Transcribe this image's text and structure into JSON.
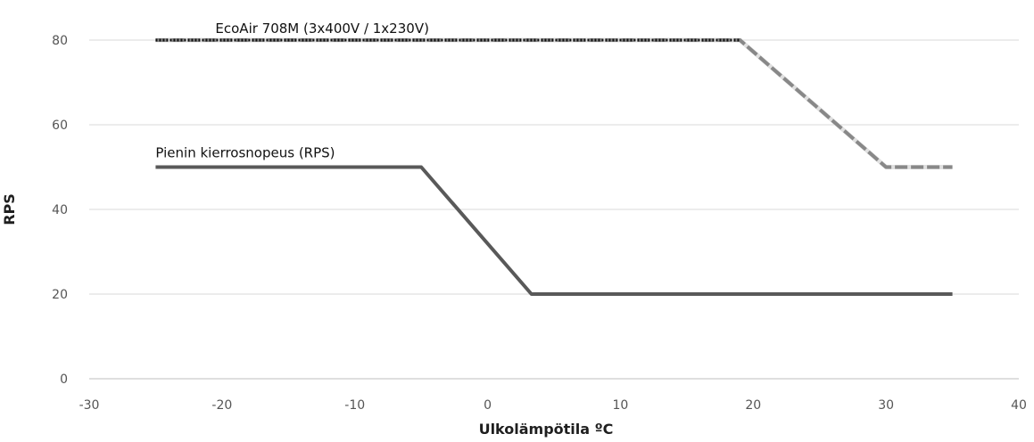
{
  "chart_data": {
    "type": "line",
    "xlabel": "Ulkolämpötila ºC",
    "ylabel": "RPS",
    "xlim": [
      -30,
      40
    ],
    "ylim": [
      0,
      80
    ],
    "x_ticks": [
      -30,
      -20,
      -10,
      0,
      10,
      20,
      30,
      40
    ],
    "y_ticks": [
      0,
      20,
      40,
      60,
      80
    ],
    "grid": "horizontal",
    "legend": "none",
    "series": [
      {
        "name": "EcoAir 708M (3x400V / 1x230V)",
        "color": "#888888",
        "points": [
          {
            "x": -25,
            "y": 80
          },
          {
            "x": 19,
            "y": 80
          },
          {
            "x": 30,
            "y": 50
          },
          {
            "x": 35,
            "y": 50
          }
        ]
      },
      {
        "name": "Pienin kierrosnopeus (RPS)",
        "color": "#595959",
        "points": [
          {
            "x": -25,
            "y": 50
          },
          {
            "x": -5,
            "y": 50
          },
          {
            "x": 3.3,
            "y": 20
          },
          {
            "x": 35,
            "y": 20
          }
        ]
      }
    ]
  }
}
